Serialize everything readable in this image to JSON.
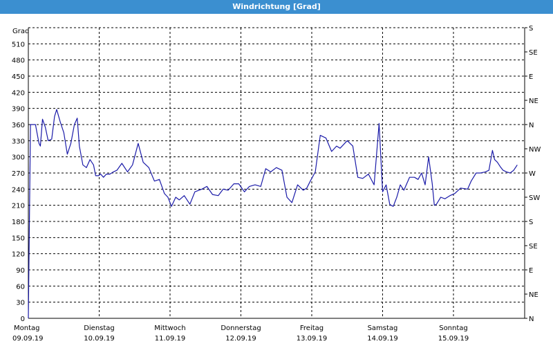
{
  "window": {
    "title": "Windrichtung [Grad]"
  },
  "chart_data": {
    "type": "line",
    "title": "Windrichtung [Grad]",
    "ylabel": "Grad",
    "ylim": [
      0,
      540
    ],
    "yticks": [
      0,
      30,
      60,
      90,
      120,
      150,
      180,
      210,
      240,
      270,
      300,
      330,
      360,
      390,
      420,
      450,
      480,
      510
    ],
    "xlim": [
      0,
      7
    ],
    "day_labels": [
      {
        "day": "Montag",
        "date": "09.09.19"
      },
      {
        "day": "Dienstag",
        "date": "10.09.19"
      },
      {
        "day": "Mittwoch",
        "date": "11.09.19"
      },
      {
        "day": "Donnerstag",
        "date": "12.09.19"
      },
      {
        "day": "Freitag",
        "date": "13.09.19"
      },
      {
        "day": "Samstag",
        "date": "14.09.19"
      },
      {
        "day": "Sonntag",
        "date": "15.09.19"
      }
    ],
    "right_axis": [
      {
        "value": 0,
        "label": "N"
      },
      {
        "value": 45,
        "label": "NE"
      },
      {
        "value": 90,
        "label": "E"
      },
      {
        "value": 135,
        "label": "SE"
      },
      {
        "value": 180,
        "label": "S"
      },
      {
        "value": 225,
        "label": "SW"
      },
      {
        "value": 270,
        "label": "W"
      },
      {
        "value": 315,
        "label": "NW"
      },
      {
        "value": 360,
        "label": "N"
      },
      {
        "value": 405,
        "label": "NE"
      },
      {
        "value": 450,
        "label": "E"
      },
      {
        "value": 495,
        "label": "SE"
      },
      {
        "value": 540,
        "label": "S"
      }
    ],
    "grid": true,
    "line_color": "#1a1aa8",
    "series": [
      {
        "x": [
          0.0,
          0.03,
          0.1,
          0.15,
          0.17,
          0.2,
          0.24,
          0.28,
          0.33,
          0.37,
          0.4,
          0.45,
          0.5,
          0.55,
          0.6,
          0.65,
          0.69,
          0.72,
          0.77,
          0.82,
          0.87,
          0.92,
          0.95,
          0.99,
          1.02,
          1.06,
          1.1,
          1.15,
          1.2,
          1.25,
          1.32,
          1.4,
          1.47,
          1.55,
          1.62,
          1.7,
          1.78,
          1.85,
          1.92,
          1.97,
          2.02,
          2.08,
          2.13,
          2.2,
          2.28,
          2.35,
          2.45,
          2.52,
          2.6,
          2.68,
          2.75,
          2.82,
          2.9,
          2.97,
          3.05,
          3.12,
          3.2,
          3.28,
          3.35,
          3.42,
          3.5,
          3.58,
          3.65,
          3.72,
          3.8,
          3.88,
          3.93,
          3.98,
          4.05,
          4.12,
          4.2,
          4.28,
          4.35,
          4.4,
          4.5,
          4.58,
          4.65,
          4.72,
          4.8,
          4.88,
          4.95,
          5.0,
          5.05,
          5.1,
          5.12,
          5.15,
          5.2,
          5.25,
          5.3,
          5.38,
          5.45,
          5.5,
          5.55,
          5.6,
          5.65,
          5.7,
          5.73,
          5.76,
          5.82,
          5.88,
          5.95,
          6.02,
          6.1,
          6.2,
          6.25,
          6.32,
          6.38,
          6.45,
          6.5,
          6.55,
          6.58,
          6.62,
          6.66,
          6.7,
          6.75,
          6.8,
          6.85,
          6.9
        ],
        "values": [
          0,
          360,
          360,
          325,
          320,
          370,
          355,
          330,
          333,
          375,
          388,
          365,
          345,
          305,
          325,
          360,
          372,
          320,
          285,
          280,
          295,
          285,
          265,
          265,
          268,
          262,
          268,
          268,
          272,
          275,
          288,
          272,
          285,
          325,
          290,
          280,
          255,
          258,
          232,
          225,
          208,
          225,
          220,
          228,
          212,
          235,
          240,
          245,
          230,
          228,
          240,
          238,
          250,
          250,
          235,
          245,
          248,
          245,
          278,
          272,
          280,
          275,
          225,
          215,
          248,
          238,
          242,
          255,
          272,
          340,
          335,
          310,
          320,
          316,
          330,
          320,
          262,
          260,
          268,
          248,
          362,
          235,
          248,
          212,
          210,
          208,
          225,
          248,
          238,
          262,
          262,
          258,
          270,
          248,
          300,
          250,
          210,
          212,
          225,
          222,
          228,
          232,
          242,
          240,
          255,
          270,
          270,
          272,
          275,
          312,
          295,
          290,
          282,
          275,
          272,
          270,
          275,
          285
        ]
      }
    ]
  }
}
